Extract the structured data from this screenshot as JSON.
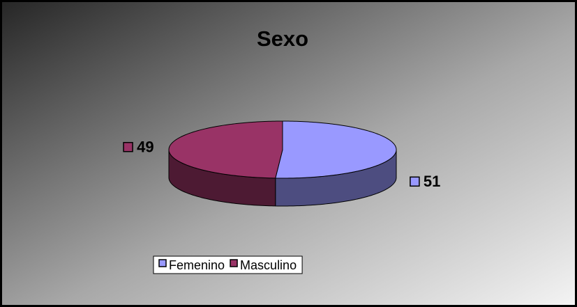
{
  "chart_data": {
    "type": "pie",
    "title": "Sexo",
    "categories": [
      "Femenino",
      "Masculino"
    ],
    "values": [
      51,
      49
    ],
    "colors": [
      "#9999ff",
      "#993366"
    ],
    "legend": "bottom",
    "three_d": true
  }
}
